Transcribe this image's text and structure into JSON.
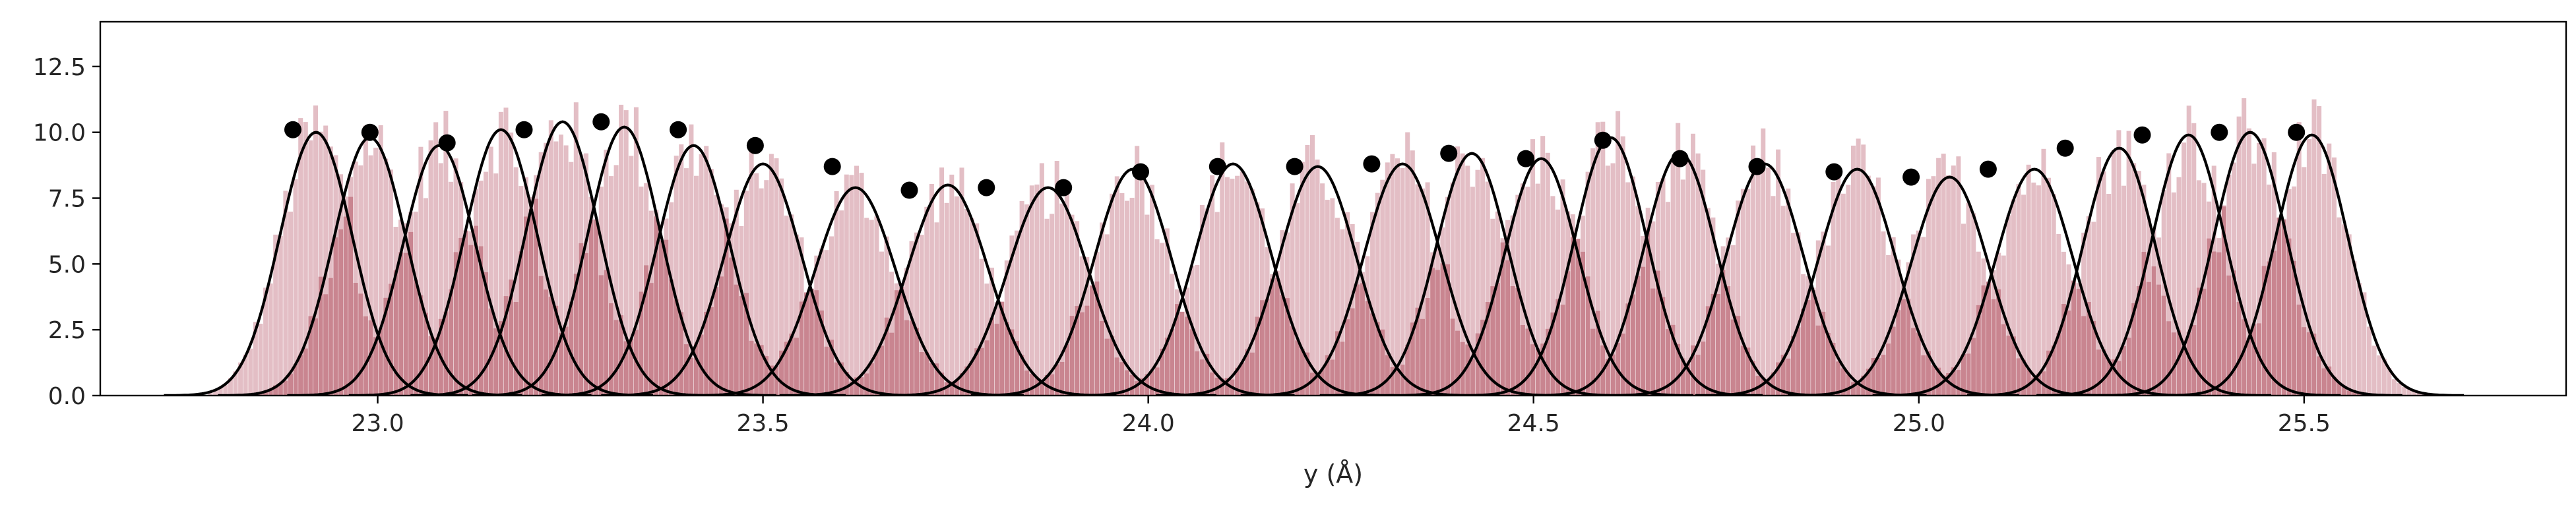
{
  "chart_data": {
    "type": "histogram-with-gaussian-fits",
    "xlabel": "y (Å)",
    "ylabel": "",
    "title": "",
    "xlim": [
      22.64,
      25.84
    ],
    "ylim": [
      0,
      14.2
    ],
    "x_ticks": [
      23.0,
      23.5,
      24.0,
      24.5,
      25.0,
      25.5
    ],
    "x_tick_labels": [
      "23.0",
      "23.5",
      "24.0",
      "24.5",
      "25.0",
      "25.5"
    ],
    "y_ticks": [
      0.0,
      2.5,
      5.0,
      7.5,
      10.0,
      12.5
    ],
    "y_tick_labels": [
      "0.0",
      "2.5",
      "5.0",
      "7.5",
      "10.0",
      "12.5"
    ],
    "grid": false,
    "colors": {
      "histogram_light": "#e3bec5",
      "histogram_overlap": "#c98590",
      "fit_line": "#000000",
      "points": "#000000"
    },
    "gaussian_fits": [
      {
        "center": 22.92,
        "peak": 10.0,
        "sigma": 0.047
      },
      {
        "center": 22.99,
        "peak": 9.8,
        "sigma": 0.047
      },
      {
        "center": 23.08,
        "peak": 9.5,
        "sigma": 0.047
      },
      {
        "center": 23.16,
        "peak": 10.1,
        "sigma": 0.047
      },
      {
        "center": 23.24,
        "peak": 10.4,
        "sigma": 0.047
      },
      {
        "center": 23.32,
        "peak": 10.2,
        "sigma": 0.047
      },
      {
        "center": 23.41,
        "peak": 9.5,
        "sigma": 0.047
      },
      {
        "center": 23.5,
        "peak": 8.8,
        "sigma": 0.05
      },
      {
        "center": 23.62,
        "peak": 7.9,
        "sigma": 0.052
      },
      {
        "center": 23.74,
        "peak": 8.0,
        "sigma": 0.052
      },
      {
        "center": 23.87,
        "peak": 7.9,
        "sigma": 0.052
      },
      {
        "center": 23.98,
        "peak": 8.6,
        "sigma": 0.05
      },
      {
        "center": 24.11,
        "peak": 8.8,
        "sigma": 0.05
      },
      {
        "center": 24.22,
        "peak": 8.7,
        "sigma": 0.05
      },
      {
        "center": 24.33,
        "peak": 8.8,
        "sigma": 0.05
      },
      {
        "center": 24.42,
        "peak": 9.2,
        "sigma": 0.047
      },
      {
        "center": 24.51,
        "peak": 9.0,
        "sigma": 0.047
      },
      {
        "center": 24.6,
        "peak": 9.8,
        "sigma": 0.047
      },
      {
        "center": 24.69,
        "peak": 9.2,
        "sigma": 0.047
      },
      {
        "center": 24.8,
        "peak": 8.8,
        "sigma": 0.05
      },
      {
        "center": 24.92,
        "peak": 8.6,
        "sigma": 0.05
      },
      {
        "center": 25.04,
        "peak": 8.3,
        "sigma": 0.05
      },
      {
        "center": 25.15,
        "peak": 8.6,
        "sigma": 0.05
      },
      {
        "center": 25.26,
        "peak": 9.4,
        "sigma": 0.047
      },
      {
        "center": 25.35,
        "peak": 9.9,
        "sigma": 0.047
      },
      {
        "center": 25.43,
        "peak": 10.0,
        "sigma": 0.047
      },
      {
        "center": 25.51,
        "peak": 9.9,
        "sigma": 0.047
      }
    ],
    "points": [
      {
        "x": 22.89,
        "y": 10.1
      },
      {
        "x": 22.99,
        "y": 10.0
      },
      {
        "x": 23.09,
        "y": 9.6
      },
      {
        "x": 23.19,
        "y": 10.1
      },
      {
        "x": 23.29,
        "y": 10.4
      },
      {
        "x": 23.39,
        "y": 10.1
      },
      {
        "x": 23.49,
        "y": 9.5
      },
      {
        "x": 23.59,
        "y": 8.7
      },
      {
        "x": 23.69,
        "y": 7.8
      },
      {
        "x": 23.79,
        "y": 7.9
      },
      {
        "x": 23.89,
        "y": 7.9
      },
      {
        "x": 23.99,
        "y": 8.5
      },
      {
        "x": 24.09,
        "y": 8.7
      },
      {
        "x": 24.19,
        "y": 8.7
      },
      {
        "x": 24.29,
        "y": 8.8
      },
      {
        "x": 24.39,
        "y": 9.2
      },
      {
        "x": 24.49,
        "y": 9.0
      },
      {
        "x": 24.59,
        "y": 9.7
      },
      {
        "x": 24.69,
        "y": 9.0
      },
      {
        "x": 24.79,
        "y": 8.7
      },
      {
        "x": 24.89,
        "y": 8.5
      },
      {
        "x": 24.99,
        "y": 8.3
      },
      {
        "x": 25.09,
        "y": 8.6
      },
      {
        "x": 25.19,
        "y": 9.4
      },
      {
        "x": 25.29,
        "y": 9.9
      },
      {
        "x": 25.39,
        "y": 10.0
      },
      {
        "x": 25.49,
        "y": 10.0
      }
    ]
  }
}
